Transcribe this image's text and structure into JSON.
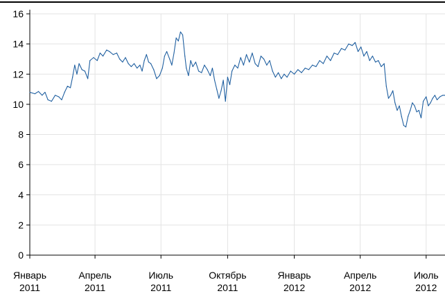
{
  "chart_data": {
    "type": "line",
    "title": "",
    "xlabel": "",
    "ylabel": "",
    "ylim": [
      0,
      16
    ],
    "y_ticks": [
      0,
      2,
      4,
      6,
      8,
      10,
      12,
      14,
      16
    ],
    "x_range": [
      "2011-01-01",
      "2012-07-27"
    ],
    "x_ticks": [
      {
        "date": "2011-01-01",
        "label_line1": "Январь",
        "label_line2": "2011"
      },
      {
        "date": "2011-04-01",
        "label_line1": "Апрель",
        "label_line2": "2011"
      },
      {
        "date": "2011-07-01",
        "label_line1": "Июль",
        "label_line2": "2011"
      },
      {
        "date": "2011-10-01",
        "label_line1": "Октябрь",
        "label_line2": "2011"
      },
      {
        "date": "2012-01-01",
        "label_line1": "Январь",
        "label_line2": "2012"
      },
      {
        "date": "2012-04-01",
        "label_line1": "Апрель",
        "label_line2": "2012"
      },
      {
        "date": "2012-07-01",
        "label_line1": "Июль",
        "label_line2": "2012"
      }
    ],
    "grid": true,
    "series": [
      {
        "name": "",
        "color": "#1f5fa0",
        "points": [
          [
            "2011-01-01",
            10.8
          ],
          [
            "2011-01-08",
            10.7
          ],
          [
            "2011-01-13",
            10.85
          ],
          [
            "2011-01-18",
            10.6
          ],
          [
            "2011-01-22",
            10.8
          ],
          [
            "2011-01-26",
            10.3
          ],
          [
            "2011-01-31",
            10.2
          ],
          [
            "2011-02-05",
            10.6
          ],
          [
            "2011-02-10",
            10.5
          ],
          [
            "2011-02-14",
            10.3
          ],
          [
            "2011-02-18",
            10.8
          ],
          [
            "2011-02-22",
            11.2
          ],
          [
            "2011-02-26",
            11.1
          ],
          [
            "2011-03-01",
            11.8
          ],
          [
            "2011-03-04",
            12.6
          ],
          [
            "2011-03-07",
            12.0
          ],
          [
            "2011-03-10",
            12.7
          ],
          [
            "2011-03-14",
            12.3
          ],
          [
            "2011-03-18",
            12.2
          ],
          [
            "2011-03-22",
            11.7
          ],
          [
            "2011-03-25",
            12.9
          ],
          [
            "2011-03-30",
            13.1
          ],
          [
            "2011-04-04",
            12.9
          ],
          [
            "2011-04-08",
            13.4
          ],
          [
            "2011-04-12",
            13.2
          ],
          [
            "2011-04-17",
            13.6
          ],
          [
            "2011-04-21",
            13.5
          ],
          [
            "2011-04-26",
            13.3
          ],
          [
            "2011-05-01",
            13.4
          ],
          [
            "2011-05-05",
            13.0
          ],
          [
            "2011-05-09",
            12.8
          ],
          [
            "2011-05-13",
            13.1
          ],
          [
            "2011-05-17",
            12.7
          ],
          [
            "2011-05-21",
            12.5
          ],
          [
            "2011-05-25",
            12.7
          ],
          [
            "2011-05-29",
            12.4
          ],
          [
            "2011-06-02",
            12.6
          ],
          [
            "2011-06-05",
            12.2
          ],
          [
            "2011-06-08",
            12.9
          ],
          [
            "2011-06-11",
            13.3
          ],
          [
            "2011-06-14",
            12.8
          ],
          [
            "2011-06-17",
            12.7
          ],
          [
            "2011-06-21",
            12.3
          ],
          [
            "2011-06-25",
            11.7
          ],
          [
            "2011-06-29",
            11.9
          ],
          [
            "2011-07-03",
            12.4
          ],
          [
            "2011-07-06",
            13.2
          ],
          [
            "2011-07-09",
            13.5
          ],
          [
            "2011-07-13",
            13.0
          ],
          [
            "2011-07-16",
            12.6
          ],
          [
            "2011-07-19",
            13.4
          ],
          [
            "2011-07-22",
            14.4
          ],
          [
            "2011-07-25",
            14.2
          ],
          [
            "2011-07-28",
            14.8
          ],
          [
            "2011-07-31",
            14.6
          ],
          [
            "2011-08-03",
            13.2
          ],
          [
            "2011-08-05",
            12.4
          ],
          [
            "2011-08-08",
            11.9
          ],
          [
            "2011-08-11",
            12.9
          ],
          [
            "2011-08-14",
            12.5
          ],
          [
            "2011-08-18",
            12.8
          ],
          [
            "2011-08-22",
            12.2
          ],
          [
            "2011-08-26",
            12.1
          ],
          [
            "2011-08-30",
            12.6
          ],
          [
            "2011-09-03",
            12.3
          ],
          [
            "2011-09-07",
            11.9
          ],
          [
            "2011-09-10",
            12.4
          ],
          [
            "2011-09-13",
            11.6
          ],
          [
            "2011-09-16",
            11.0
          ],
          [
            "2011-09-19",
            10.4
          ],
          [
            "2011-09-22",
            10.9
          ],
          [
            "2011-09-25",
            11.6
          ],
          [
            "2011-09-28",
            10.2
          ],
          [
            "2011-10-01",
            11.8
          ],
          [
            "2011-10-04",
            11.3
          ],
          [
            "2011-10-07",
            12.2
          ],
          [
            "2011-10-11",
            12.6
          ],
          [
            "2011-10-15",
            12.4
          ],
          [
            "2011-10-19",
            13.1
          ],
          [
            "2011-10-23",
            12.6
          ],
          [
            "2011-10-27",
            13.3
          ],
          [
            "2011-10-31",
            12.8
          ],
          [
            "2011-11-04",
            13.4
          ],
          [
            "2011-11-08",
            12.7
          ],
          [
            "2011-11-12",
            12.5
          ],
          [
            "2011-11-16",
            13.2
          ],
          [
            "2011-11-20",
            13.0
          ],
          [
            "2011-11-24",
            12.6
          ],
          [
            "2011-11-28",
            12.9
          ],
          [
            "2011-12-02",
            12.2
          ],
          [
            "2011-12-06",
            11.8
          ],
          [
            "2011-12-10",
            12.1
          ],
          [
            "2011-12-14",
            11.7
          ],
          [
            "2011-12-18",
            12.0
          ],
          [
            "2011-12-22",
            11.8
          ],
          [
            "2011-12-27",
            12.2
          ],
          [
            "2012-01-01",
            12.0
          ],
          [
            "2012-01-06",
            12.3
          ],
          [
            "2012-01-11",
            12.1
          ],
          [
            "2012-01-16",
            12.4
          ],
          [
            "2012-01-21",
            12.3
          ],
          [
            "2012-01-26",
            12.6
          ],
          [
            "2012-01-31",
            12.5
          ],
          [
            "2012-02-05",
            12.9
          ],
          [
            "2012-02-10",
            12.7
          ],
          [
            "2012-02-15",
            13.2
          ],
          [
            "2012-02-20",
            12.9
          ],
          [
            "2012-02-25",
            13.4
          ],
          [
            "2012-03-01",
            13.3
          ],
          [
            "2012-03-06",
            13.7
          ],
          [
            "2012-03-11",
            13.6
          ],
          [
            "2012-03-16",
            14.0
          ],
          [
            "2012-03-21",
            13.9
          ],
          [
            "2012-03-25",
            14.1
          ],
          [
            "2012-03-29",
            13.5
          ],
          [
            "2012-04-02",
            13.8
          ],
          [
            "2012-04-06",
            13.2
          ],
          [
            "2012-04-10",
            13.5
          ],
          [
            "2012-04-14",
            12.9
          ],
          [
            "2012-04-18",
            13.2
          ],
          [
            "2012-04-22",
            12.8
          ],
          [
            "2012-04-26",
            12.9
          ],
          [
            "2012-04-30",
            12.5
          ],
          [
            "2012-05-04",
            12.7
          ],
          [
            "2012-05-07",
            11.2
          ],
          [
            "2012-05-10",
            10.4
          ],
          [
            "2012-05-13",
            10.6
          ],
          [
            "2012-05-16",
            10.9
          ],
          [
            "2012-05-19",
            10.1
          ],
          [
            "2012-05-22",
            9.6
          ],
          [
            "2012-05-25",
            9.9
          ],
          [
            "2012-05-28",
            9.2
          ],
          [
            "2012-05-31",
            8.6
          ],
          [
            "2012-06-03",
            8.5
          ],
          [
            "2012-06-06",
            9.2
          ],
          [
            "2012-06-09",
            9.6
          ],
          [
            "2012-06-12",
            10.1
          ],
          [
            "2012-06-15",
            9.9
          ],
          [
            "2012-06-18",
            9.5
          ],
          [
            "2012-06-21",
            9.6
          ],
          [
            "2012-06-24",
            9.1
          ],
          [
            "2012-06-27",
            10.2
          ],
          [
            "2012-07-01",
            10.5
          ],
          [
            "2012-07-04",
            9.9
          ],
          [
            "2012-07-07",
            10.1
          ],
          [
            "2012-07-10",
            10.4
          ],
          [
            "2012-07-13",
            10.6
          ],
          [
            "2012-07-16",
            10.3
          ],
          [
            "2012-07-20",
            10.5
          ],
          [
            "2012-07-24",
            10.6
          ],
          [
            "2012-07-27",
            10.6
          ]
        ]
      }
    ]
  }
}
